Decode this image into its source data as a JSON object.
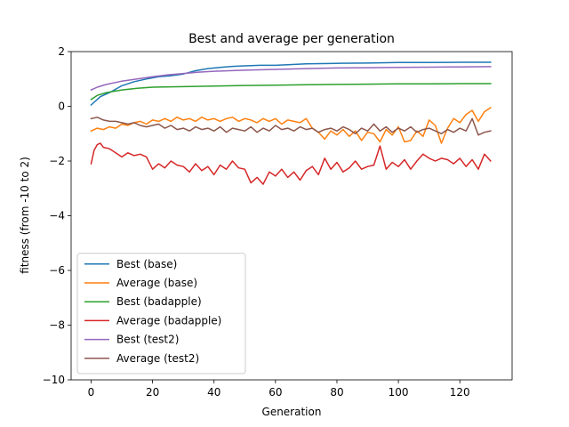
{
  "chart_data": {
    "type": "line",
    "title": "Best and average per generation",
    "xlabel": "Generation",
    "ylabel": "fitness (from -10 to 2)",
    "xlim": [
      -6.5,
      137
    ],
    "ylim": [
      -10,
      2
    ],
    "xticks": [
      0,
      20,
      40,
      60,
      80,
      100,
      120
    ],
    "yticks": [
      -10,
      -8,
      -6,
      -4,
      -2,
      0,
      2
    ],
    "ytick_labels": [
      "−10",
      "−8",
      "−6",
      "−4",
      "−2",
      "0",
      "2"
    ],
    "grid": false,
    "legend_position": "lower-left",
    "series": [
      {
        "name": "Best (base)",
        "color": "#1f77b4",
        "points": [
          [
            0,
            0.05
          ],
          [
            3,
            0.35
          ],
          [
            6,
            0.5
          ],
          [
            10,
            0.75
          ],
          [
            14,
            0.9
          ],
          [
            18,
            1.0
          ],
          [
            22,
            1.08
          ],
          [
            26,
            1.12
          ],
          [
            30,
            1.18
          ],
          [
            34,
            1.3
          ],
          [
            38,
            1.38
          ],
          [
            42,
            1.42
          ],
          [
            46,
            1.46
          ],
          [
            50,
            1.48
          ],
          [
            55,
            1.5
          ],
          [
            60,
            1.5
          ],
          [
            64,
            1.52
          ],
          [
            70,
            1.55
          ],
          [
            80,
            1.57
          ],
          [
            90,
            1.58
          ],
          [
            100,
            1.6
          ],
          [
            110,
            1.6
          ],
          [
            120,
            1.61
          ],
          [
            130,
            1.61
          ]
        ]
      },
      {
        "name": "Average (base)",
        "color": "#ff7f0e",
        "points": [
          [
            0,
            -0.9
          ],
          [
            2,
            -0.8
          ],
          [
            4,
            -0.85
          ],
          [
            6,
            -0.75
          ],
          [
            8,
            -0.8
          ],
          [
            10,
            -0.65
          ],
          [
            12,
            -0.7
          ],
          [
            14,
            -0.6
          ],
          [
            16,
            -0.55
          ],
          [
            18,
            -0.65
          ],
          [
            20,
            -0.5
          ],
          [
            22,
            -0.55
          ],
          [
            24,
            -0.45
          ],
          [
            26,
            -0.55
          ],
          [
            28,
            -0.4
          ],
          [
            30,
            -0.5
          ],
          [
            32,
            -0.45
          ],
          [
            34,
            -0.55
          ],
          [
            36,
            -0.4
          ],
          [
            38,
            -0.5
          ],
          [
            40,
            -0.45
          ],
          [
            42,
            -0.55
          ],
          [
            44,
            -0.45
          ],
          [
            46,
            -0.4
          ],
          [
            48,
            -0.55
          ],
          [
            50,
            -0.45
          ],
          [
            52,
            -0.5
          ],
          [
            54,
            -0.6
          ],
          [
            56,
            -0.45
          ],
          [
            58,
            -0.55
          ],
          [
            60,
            -0.45
          ],
          [
            62,
            -0.65
          ],
          [
            64,
            -0.5
          ],
          [
            66,
            -0.55
          ],
          [
            68,
            -0.6
          ],
          [
            70,
            -0.45
          ],
          [
            72,
            -0.8
          ],
          [
            74,
            -0.95
          ],
          [
            76,
            -1.2
          ],
          [
            78,
            -0.9
          ],
          [
            80,
            -1.05
          ],
          [
            82,
            -0.85
          ],
          [
            84,
            -1.1
          ],
          [
            86,
            -0.9
          ],
          [
            88,
            -1.25
          ],
          [
            90,
            -0.95
          ],
          [
            92,
            -1.0
          ],
          [
            94,
            -1.3
          ],
          [
            96,
            -0.85
          ],
          [
            98,
            -1.05
          ],
          [
            100,
            -0.75
          ],
          [
            102,
            -1.3
          ],
          [
            104,
            -1.25
          ],
          [
            106,
            -0.9
          ],
          [
            108,
            -1.1
          ],
          [
            110,
            -0.5
          ],
          [
            112,
            -0.7
          ],
          [
            114,
            -1.35
          ],
          [
            116,
            -0.8
          ],
          [
            118,
            -0.45
          ],
          [
            120,
            -0.6
          ],
          [
            122,
            -0.3
          ],
          [
            124,
            -0.15
          ],
          [
            126,
            -0.55
          ],
          [
            128,
            -0.2
          ],
          [
            130,
            -0.05
          ]
        ]
      },
      {
        "name": "Best (badapple)",
        "color": "#2ca02c",
        "points": [
          [
            0,
            0.25
          ],
          [
            2,
            0.4
          ],
          [
            5,
            0.5
          ],
          [
            10,
            0.6
          ],
          [
            15,
            0.66
          ],
          [
            20,
            0.7
          ],
          [
            30,
            0.72
          ],
          [
            40,
            0.74
          ],
          [
            50,
            0.76
          ],
          [
            60,
            0.77
          ],
          [
            70,
            0.79
          ],
          [
            80,
            0.8
          ],
          [
            90,
            0.81
          ],
          [
            100,
            0.82
          ],
          [
            110,
            0.82
          ],
          [
            120,
            0.83
          ],
          [
            130,
            0.83
          ]
        ]
      },
      {
        "name": "Average (badapple)",
        "color": "#d62728",
        "points": [
          [
            0,
            -2.1
          ],
          [
            1,
            -1.6
          ],
          [
            2,
            -1.4
          ],
          [
            3,
            -1.35
          ],
          [
            4,
            -1.5
          ],
          [
            6,
            -1.55
          ],
          [
            8,
            -1.7
          ],
          [
            10,
            -1.85
          ],
          [
            12,
            -1.7
          ],
          [
            14,
            -1.8
          ],
          [
            16,
            -1.75
          ],
          [
            18,
            -1.85
          ],
          [
            20,
            -2.3
          ],
          [
            22,
            -2.1
          ],
          [
            24,
            -2.25
          ],
          [
            26,
            -2.0
          ],
          [
            28,
            -2.15
          ],
          [
            30,
            -2.2
          ],
          [
            32,
            -2.4
          ],
          [
            34,
            -2.1
          ],
          [
            36,
            -2.35
          ],
          [
            38,
            -2.2
          ],
          [
            40,
            -2.5
          ],
          [
            42,
            -2.15
          ],
          [
            44,
            -2.3
          ],
          [
            46,
            -2.0
          ],
          [
            48,
            -2.25
          ],
          [
            50,
            -2.3
          ],
          [
            52,
            -2.8
          ],
          [
            54,
            -2.6
          ],
          [
            56,
            -2.85
          ],
          [
            58,
            -2.4
          ],
          [
            60,
            -2.55
          ],
          [
            62,
            -2.3
          ],
          [
            64,
            -2.6
          ],
          [
            66,
            -2.4
          ],
          [
            68,
            -2.7
          ],
          [
            70,
            -2.35
          ],
          [
            72,
            -2.2
          ],
          [
            74,
            -2.5
          ],
          [
            76,
            -1.9
          ],
          [
            78,
            -2.3
          ],
          [
            80,
            -2.05
          ],
          [
            82,
            -2.4
          ],
          [
            84,
            -2.25
          ],
          [
            86,
            -2.0
          ],
          [
            88,
            -2.3
          ],
          [
            90,
            -2.2
          ],
          [
            92,
            -2.15
          ],
          [
            94,
            -1.45
          ],
          [
            96,
            -2.3
          ],
          [
            98,
            -2.05
          ],
          [
            100,
            -2.2
          ],
          [
            102,
            -1.95
          ],
          [
            104,
            -2.3
          ],
          [
            106,
            -2.0
          ],
          [
            108,
            -1.75
          ],
          [
            110,
            -1.9
          ],
          [
            112,
            -2.0
          ],
          [
            114,
            -1.9
          ],
          [
            116,
            -1.95
          ],
          [
            118,
            -2.1
          ],
          [
            120,
            -1.9
          ],
          [
            122,
            -2.2
          ],
          [
            124,
            -1.95
          ],
          [
            126,
            -2.3
          ],
          [
            128,
            -1.75
          ],
          [
            130,
            -2.0
          ]
        ]
      },
      {
        "name": "Best (test2)",
        "color": "#9467bd",
        "points": [
          [
            0,
            0.6
          ],
          [
            2,
            0.7
          ],
          [
            5,
            0.8
          ],
          [
            10,
            0.92
          ],
          [
            15,
            1.0
          ],
          [
            20,
            1.08
          ],
          [
            25,
            1.15
          ],
          [
            30,
            1.2
          ],
          [
            35,
            1.25
          ],
          [
            40,
            1.28
          ],
          [
            45,
            1.3
          ],
          [
            50,
            1.32
          ],
          [
            60,
            1.35
          ],
          [
            70,
            1.38
          ],
          [
            80,
            1.4
          ],
          [
            90,
            1.41
          ],
          [
            100,
            1.42
          ],
          [
            110,
            1.43
          ],
          [
            120,
            1.44
          ],
          [
            130,
            1.45
          ]
        ]
      },
      {
        "name": "Average (test2)",
        "color": "#8c564b",
        "points": [
          [
            0,
            -0.45
          ],
          [
            2,
            -0.4
          ],
          [
            4,
            -0.5
          ],
          [
            6,
            -0.55
          ],
          [
            8,
            -0.55
          ],
          [
            10,
            -0.6
          ],
          [
            12,
            -0.65
          ],
          [
            14,
            -0.6
          ],
          [
            16,
            -0.7
          ],
          [
            18,
            -0.75
          ],
          [
            20,
            -0.7
          ],
          [
            22,
            -0.65
          ],
          [
            24,
            -0.8
          ],
          [
            26,
            -0.7
          ],
          [
            28,
            -0.85
          ],
          [
            30,
            -0.8
          ],
          [
            32,
            -0.9
          ],
          [
            34,
            -0.75
          ],
          [
            36,
            -0.85
          ],
          [
            38,
            -0.8
          ],
          [
            40,
            -0.9
          ],
          [
            42,
            -0.75
          ],
          [
            44,
            -0.95
          ],
          [
            46,
            -0.8
          ],
          [
            48,
            -0.85
          ],
          [
            50,
            -0.9
          ],
          [
            52,
            -0.75
          ],
          [
            54,
            -0.95
          ],
          [
            56,
            -0.8
          ],
          [
            58,
            -0.9
          ],
          [
            60,
            -0.7
          ],
          [
            62,
            -0.85
          ],
          [
            64,
            -0.8
          ],
          [
            66,
            -0.9
          ],
          [
            68,
            -0.75
          ],
          [
            70,
            -0.85
          ],
          [
            72,
            -0.8
          ],
          [
            74,
            -0.95
          ],
          [
            76,
            -0.85
          ],
          [
            78,
            -0.8
          ],
          [
            80,
            -0.9
          ],
          [
            82,
            -0.75
          ],
          [
            84,
            -0.85
          ],
          [
            86,
            -1.0
          ],
          [
            88,
            -0.8
          ],
          [
            90,
            -0.9
          ],
          [
            92,
            -0.65
          ],
          [
            94,
            -0.9
          ],
          [
            96,
            -0.75
          ],
          [
            98,
            -0.95
          ],
          [
            100,
            -0.8
          ],
          [
            102,
            -0.9
          ],
          [
            104,
            -0.75
          ],
          [
            106,
            -0.95
          ],
          [
            108,
            -0.85
          ],
          [
            110,
            -0.8
          ],
          [
            112,
            -0.9
          ],
          [
            114,
            -1.0
          ],
          [
            116,
            -0.85
          ],
          [
            118,
            -0.95
          ],
          [
            120,
            -0.8
          ],
          [
            122,
            -0.9
          ],
          [
            124,
            -0.45
          ],
          [
            126,
            -1.05
          ],
          [
            128,
            -0.95
          ],
          [
            130,
            -0.9
          ]
        ]
      }
    ]
  }
}
